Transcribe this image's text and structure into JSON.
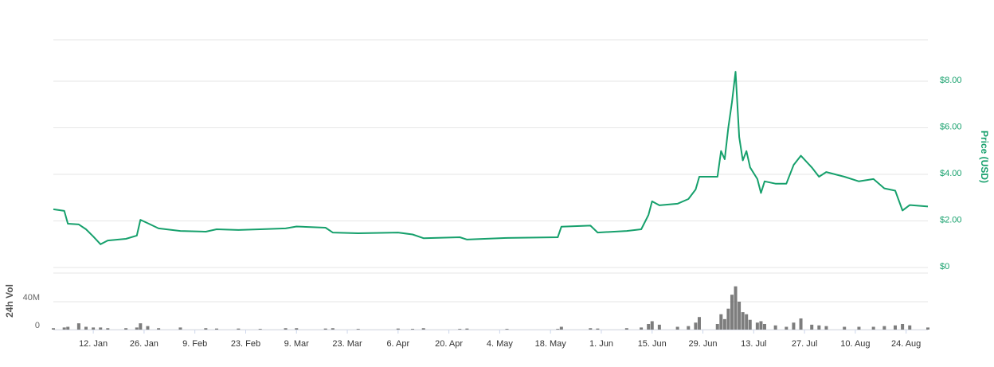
{
  "chart_data": [
    {
      "type": "line",
      "y_label": "Price (USD)",
      "color": "#16a06c",
      "grid": true,
      "xlim": [
        "1. Jan",
        "30. Aug"
      ],
      "ylim": [
        0,
        9.78
      ],
      "yticks": [
        {
          "value": 0,
          "label": "$0"
        },
        {
          "value": 2,
          "label": "$2.00"
        },
        {
          "value": 4,
          "label": "$4.00"
        },
        {
          "value": 6,
          "label": "$6.00"
        },
        {
          "value": 8,
          "label": "$8.00"
        }
      ],
      "x": [
        "1. Jan",
        "4. Jan",
        "5. Jan",
        "8. Jan",
        "10. Jan",
        "12. Jan",
        "14. Jan",
        "16. Jan",
        "21. Jan",
        "24. Jan",
        "25. Jan",
        "27. Jan",
        "30. Jan",
        "5. Feb",
        "12. Feb",
        "15. Feb",
        "21. Feb",
        "27. Feb",
        "6. Mar",
        "9. Mar",
        "17. Mar",
        "19. Mar",
        "26. Mar",
        "6. Apr",
        "10. Apr",
        "13. Apr",
        "23. Apr",
        "25. Apr",
        "6. May",
        "20. May",
        "21. May",
        "29. May",
        "31. May",
        "8. Jun",
        "12. Jun",
        "14. Jun",
        "15. Jun",
        "17. Jun",
        "22. Jun",
        "25. Jun",
        "27. Jun",
        "28. Jun",
        "3. Jul",
        "4. Jul",
        "5. Jul",
        "6. Jul",
        "7. Jul",
        "8. Jul",
        "9. Jul",
        "10. Jul",
        "11. Jul",
        "12. Jul",
        "14. Jul",
        "15. Jul",
        "16. Jul",
        "19. Jul",
        "22. Jul",
        "24. Jul",
        "26. Jul",
        "29. Jul",
        "31. Jul",
        "2. Aug",
        "7. Aug",
        "11. Aug",
        "15. Aug",
        "18. Aug",
        "21. Aug",
        "23. Aug",
        "25. Aug",
        "30. Aug"
      ],
      "values": [
        2.5,
        2.43,
        1.88,
        1.85,
        1.64,
        1.33,
        1.0,
        1.16,
        1.23,
        1.37,
        2.05,
        1.9,
        1.68,
        1.57,
        1.54,
        1.64,
        1.61,
        1.64,
        1.68,
        1.76,
        1.71,
        1.5,
        1.47,
        1.5,
        1.42,
        1.26,
        1.3,
        1.2,
        1.27,
        1.3,
        1.75,
        1.8,
        1.5,
        1.57,
        1.64,
        2.26,
        2.84,
        2.67,
        2.74,
        2.94,
        3.35,
        3.9,
        3.9,
        5.0,
        4.65,
        6.0,
        7.1,
        8.41,
        5.6,
        4.6,
        5.0,
        4.3,
        3.8,
        3.2,
        3.7,
        3.6,
        3.6,
        4.4,
        4.8,
        4.3,
        3.9,
        4.1,
        3.9,
        3.7,
        3.8,
        3.4,
        3.3,
        2.45,
        2.68,
        2.62
      ]
    },
    {
      "type": "bar",
      "y_label": "24h Vol",
      "color": "#666666",
      "grid": true,
      "xlim": [
        "1. Jan",
        "30. Aug"
      ],
      "ylim": [
        0,
        81000000
      ],
      "yticks": [
        0,
        {
          "value": 40000000,
          "label": "40M"
        }
      ],
      "xticks": [
        "12. Jan",
        "26. Jan",
        "9. Feb",
        "23. Feb",
        "9. Mar",
        "23. Mar",
        "6. Apr",
        "20. Apr",
        "4. May",
        "18. May",
        "1. Jun",
        "15. Jun",
        "29. Jun",
        "13. Jul",
        "27. Jul",
        "10. Aug",
        "24. Aug"
      ],
      "x": [
        "1. Jan",
        "4. Jan",
        "5. Jan",
        "8. Jan",
        "10. Jan",
        "12. Jan",
        "14. Jan",
        "16. Jan",
        "21. Jan",
        "24. Jan",
        "25. Jan",
        "27. Jan",
        "30. Jan",
        "5. Feb",
        "12. Feb",
        "15. Feb",
        "21. Feb",
        "27. Feb",
        "6. Mar",
        "9. Mar",
        "17. Mar",
        "19. Mar",
        "26. Mar",
        "6. Apr",
        "10. Apr",
        "13. Apr",
        "23. Apr",
        "25. Apr",
        "6. May",
        "20. May",
        "21. May",
        "29. May",
        "31. May",
        "8. Jun",
        "12. Jun",
        "14. Jun",
        "15. Jun",
        "17. Jun",
        "22. Jun",
        "25. Jun",
        "27. Jun",
        "28. Jun",
        "3. Jul",
        "4. Jul",
        "5. Jul",
        "6. Jul",
        "7. Jul",
        "8. Jul",
        "9. Jul",
        "10. Jul",
        "11. Jul",
        "12. Jul",
        "14. Jul",
        "15. Jul",
        "16. Jul",
        "19. Jul",
        "22. Jul",
        "24. Jul",
        "26. Jul",
        "29. Jul",
        "31. Jul",
        "2. Aug",
        "7. Aug",
        "11. Aug",
        "15. Aug",
        "18. Aug",
        "21. Aug",
        "23. Aug",
        "25. Aug",
        "30. Aug"
      ],
      "values": [
        2000000,
        3000000,
        4000000,
        9000000,
        4000000,
        3000000,
        3000000,
        2000000,
        2000000,
        3000000,
        9000000,
        5000000,
        2000000,
        3000000,
        2000000,
        1500000,
        1500000,
        1000000,
        2000000,
        2000000,
        1500000,
        2000000,
        1000000,
        1500000,
        1000000,
        2000000,
        1000000,
        1500000,
        1000000,
        1000000,
        4000000,
        2000000,
        1500000,
        2000000,
        3000000,
        8000000,
        12000000,
        7000000,
        4000000,
        5000000,
        10000000,
        18000000,
        8000000,
        22000000,
        15000000,
        30000000,
        50000000,
        62000000,
        40000000,
        25000000,
        22000000,
        14000000,
        10000000,
        12000000,
        8000000,
        6000000,
        4000000,
        10000000,
        16000000,
        7000000,
        6000000,
        5000000,
        4000000,
        4000000,
        4000000,
        5000000,
        6000000,
        8000000,
        6000000,
        3000000
      ]
    }
  ]
}
